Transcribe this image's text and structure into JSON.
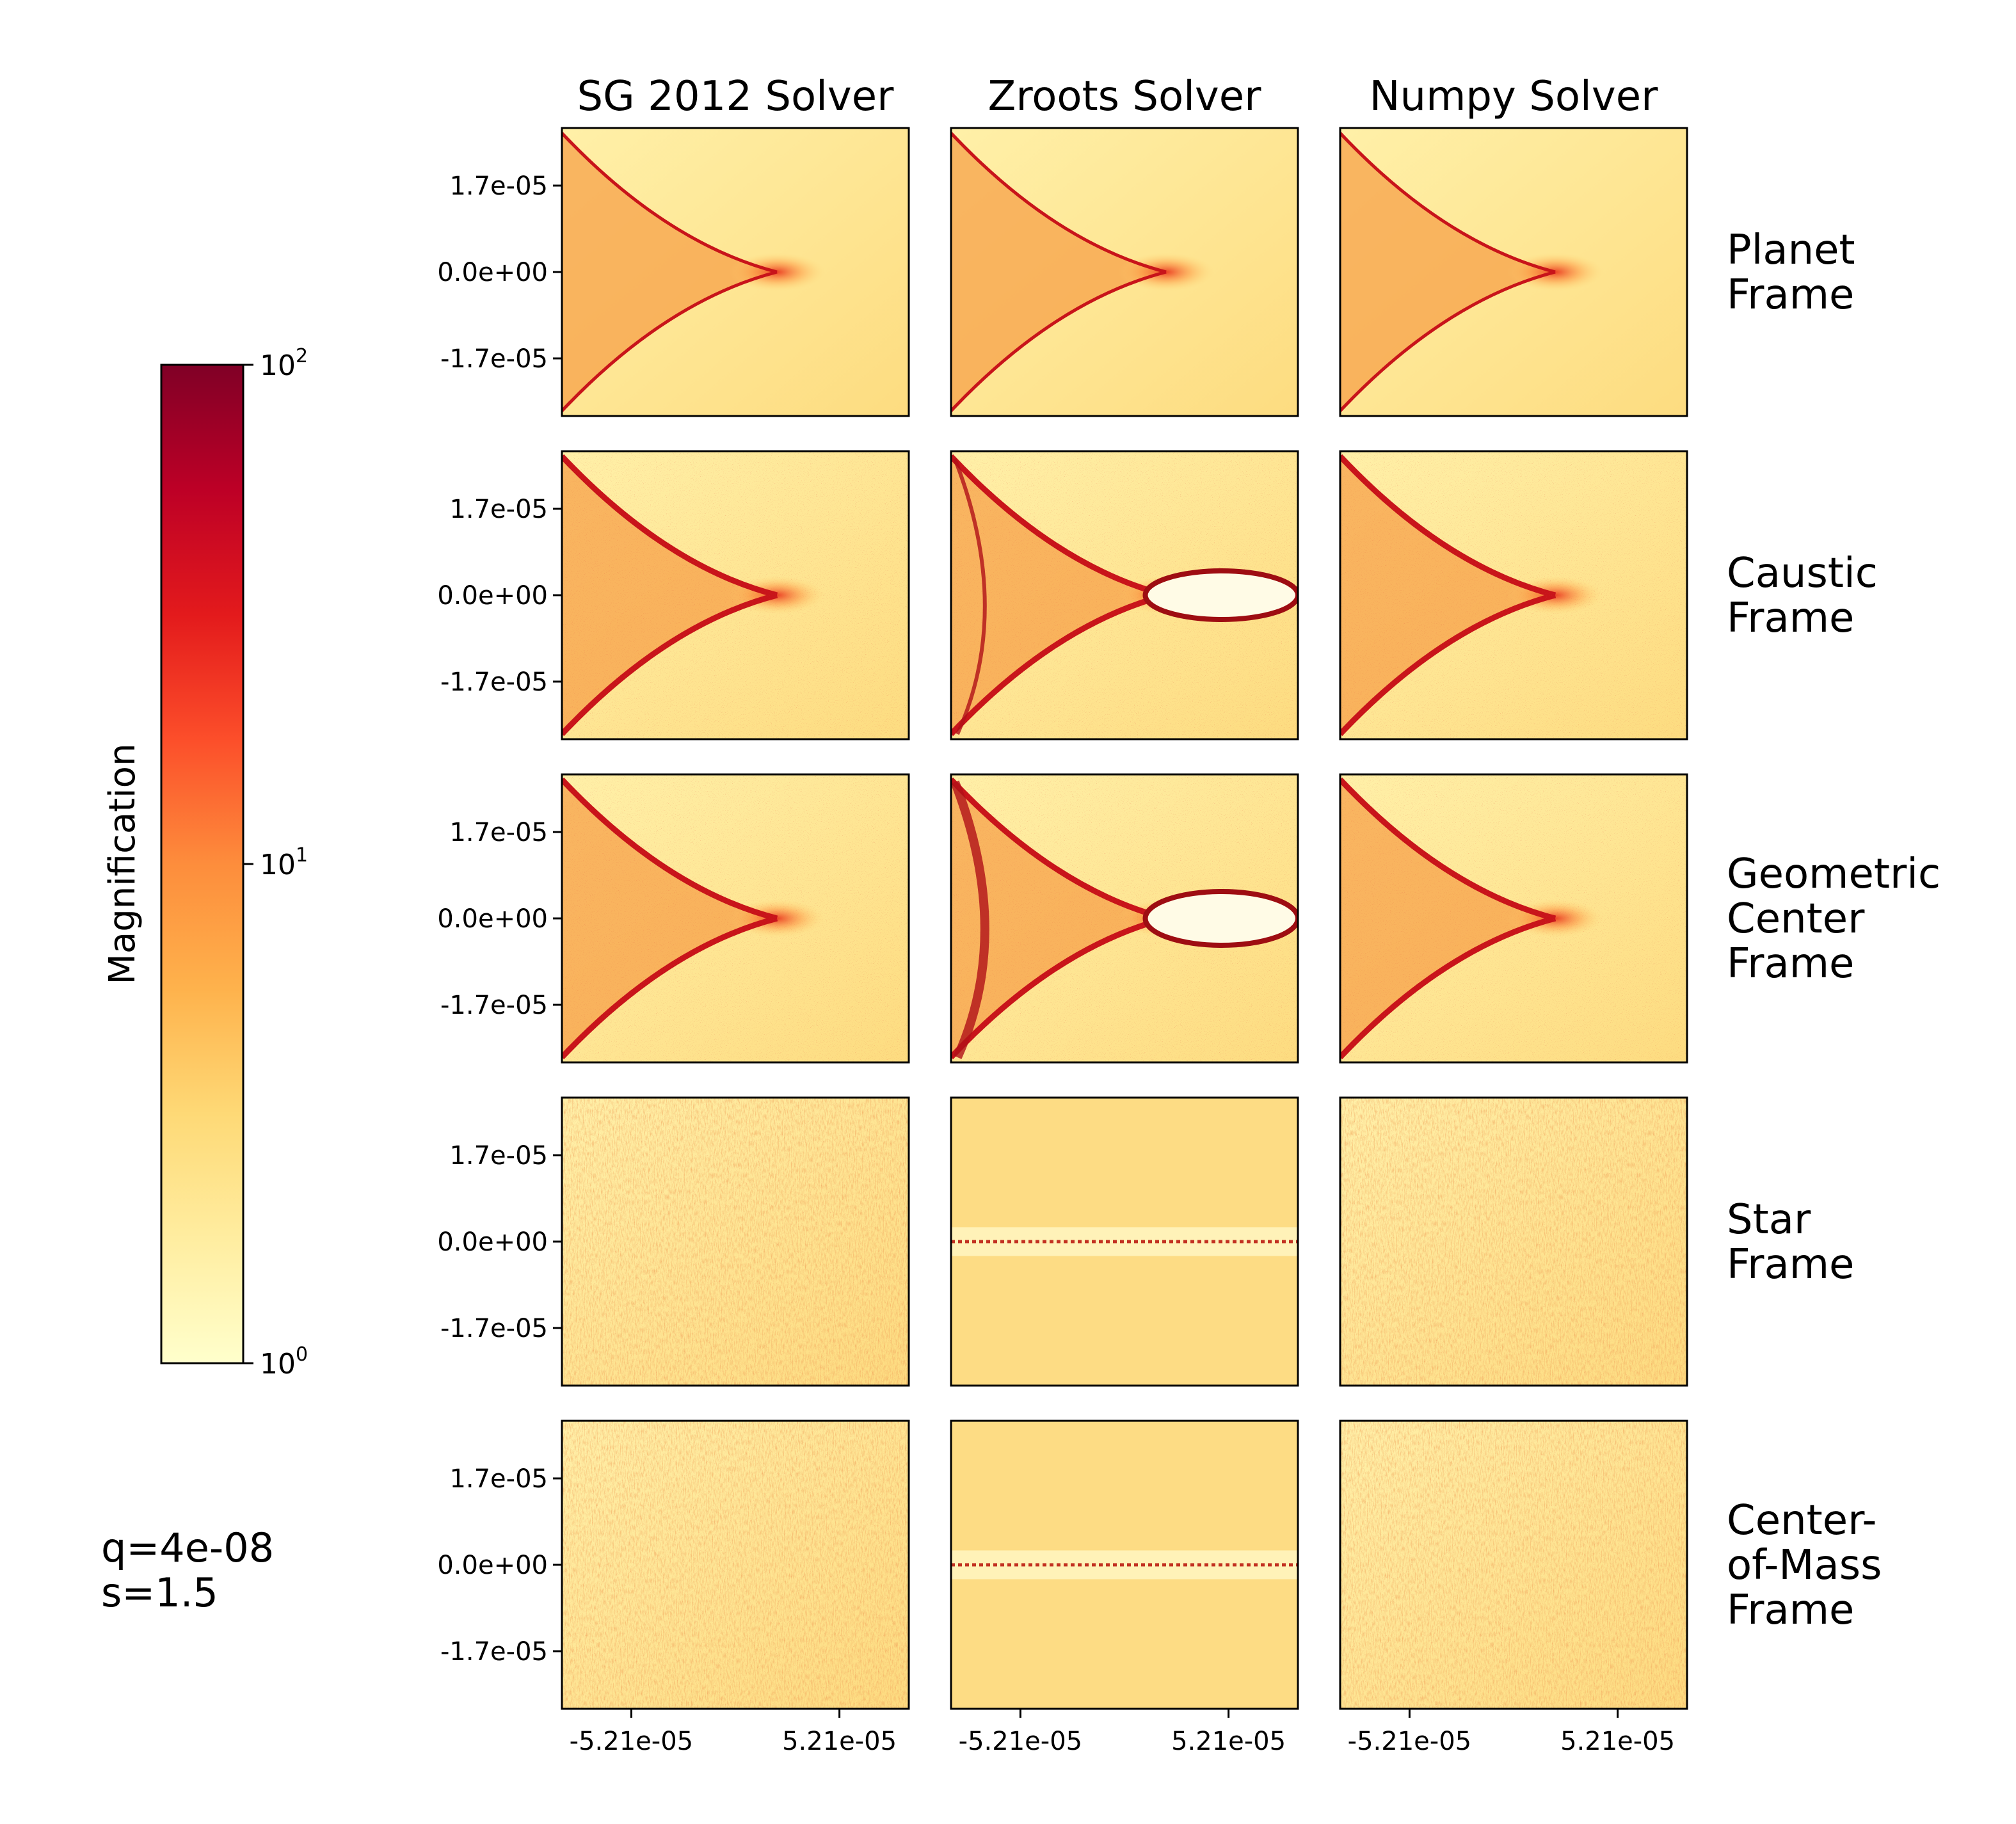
{
  "chart_data": {
    "type": "heatmap",
    "columns": [
      "SG 2012 Solver",
      "Zroots Solver",
      "Numpy Solver"
    ],
    "rows": [
      [
        "Planet",
        "Frame"
      ],
      [
        "Caustic",
        "Frame"
      ],
      [
        "Geometric",
        "Center",
        "Frame"
      ],
      [
        "Star",
        "Frame"
      ],
      [
        "Center-",
        "of-Mass",
        "Frame"
      ]
    ],
    "x_ticks": [
      "-5.21e-05",
      "5.21e-05"
    ],
    "y_ticks": [
      "1.7e-05",
      "0.0e+00",
      "-1.7e-05"
    ],
    "colorbar": {
      "label": "Magnification",
      "scale": "log",
      "range": [
        1,
        100
      ],
      "ticks": [
        {
          "base": "10",
          "exp": "2"
        },
        {
          "base": "10",
          "exp": "1"
        },
        {
          "base": "10",
          "exp": "0"
        }
      ],
      "colormap": [
        "#ffffcc",
        "#ffeda0",
        "#fed976",
        "#feb24c",
        "#fd8d3c",
        "#fc4e2a",
        "#e31a1c",
        "#bd0026",
        "#800026"
      ]
    },
    "params": [
      "q=4e-08",
      "s=1.5"
    ]
  }
}
